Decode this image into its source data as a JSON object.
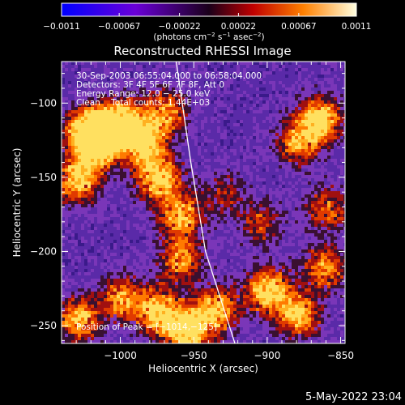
{
  "chart_data": {
    "type": "heatmap",
    "title": "Reconstructed RHESSI Image",
    "xlabel": "Heliocentric X (arcsec)",
    "ylabel": "Heliocentric Y (arcsec)",
    "xlim": [
      -1040,
      -847
    ],
    "ylim": [
      -262,
      -72
    ],
    "x_ticks": [
      -1000,
      -950,
      -900,
      -850
    ],
    "x_tick_labels": [
      "−1000",
      "−950",
      "−900",
      "−850"
    ],
    "y_ticks": [
      -100,
      -150,
      -200,
      -250
    ],
    "y_tick_labels": [
      "−100",
      "−150",
      "−200",
      "−250"
    ],
    "colorbar": {
      "range": [
        -0.0011,
        0.0011
      ],
      "ticks": [
        -0.0011,
        -0.00067,
        -0.00022,
        0.00022,
        0.00067,
        0.0011
      ],
      "tick_labels": [
        "−0.0011",
        "−0.00067",
        "−0.00022",
        "0.00022",
        "0.00067",
        "0.0011"
      ],
      "unit_prefix": "(photons cm",
      "unit_exp1": "−2",
      "unit_mid": " s",
      "unit_exp2": "−1",
      "unit_mid2": " asec",
      "unit_exp3": "−2",
      "unit_suffix": ")"
    },
    "annotations": {
      "time_range": "30-Sep-2003 06:55:04.000 to 06:58:04.000",
      "detectors": "Detectors: 3F 4F 5F 6F 7F 8F, Att 0",
      "energy_range": "Energy Range: 12.0 − 25.0 keV",
      "clean_counts": "Clean    Total counts: 1.44E+03",
      "peak": "Position of Peak = [−1014,−125]"
    },
    "limb": [
      [
        -962,
        -72
      ],
      [
        -952,
        -140
      ],
      [
        -942,
        -200
      ],
      [
        -922,
        -262
      ]
    ],
    "sources": [
      {
        "x": -1022,
        "y": -118,
        "value": 1.0
      },
      {
        "x": -1014,
        "y": -125,
        "value": 1.0
      },
      {
        "x": -1000,
        "y": -110,
        "value": 0.7
      },
      {
        "x": -1030,
        "y": -150,
        "value": 0.8
      },
      {
        "x": -985,
        "y": -125,
        "value": 0.8
      },
      {
        "x": -970,
        "y": -105,
        "value": 0.6
      },
      {
        "x": -975,
        "y": -150,
        "value": 0.8
      },
      {
        "x": -960,
        "y": -175,
        "value": 0.7
      },
      {
        "x": -960,
        "y": -205,
        "value": 0.6
      },
      {
        "x": -1030,
        "y": -245,
        "value": 0.7
      },
      {
        "x": -1000,
        "y": -230,
        "value": 0.6
      },
      {
        "x": -975,
        "y": -240,
        "value": 0.8
      },
      {
        "x": -955,
        "y": -252,
        "value": 0.9
      },
      {
        "x": -935,
        "y": -238,
        "value": 0.7
      },
      {
        "x": -900,
        "y": -225,
        "value": 0.8
      },
      {
        "x": -880,
        "y": -242,
        "value": 0.7
      },
      {
        "x": -862,
        "y": -210,
        "value": 0.6
      },
      {
        "x": -865,
        "y": -110,
        "value": 0.8
      },
      {
        "x": -880,
        "y": -125,
        "value": 0.6
      },
      {
        "x": -860,
        "y": -170,
        "value": 0.5
      },
      {
        "x": -905,
        "y": -180,
        "value": 0.4
      },
      {
        "x": -930,
        "y": -160,
        "value": 0.3
      }
    ]
  },
  "footer": {
    "timestamp": "5-May-2022 23:04"
  }
}
